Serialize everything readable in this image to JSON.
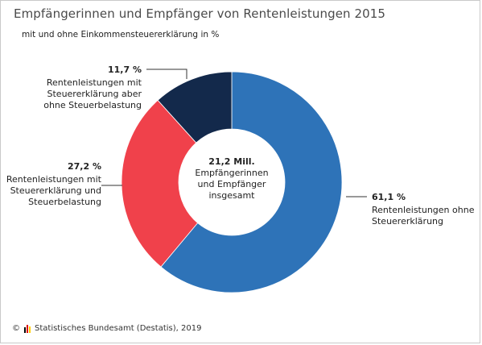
{
  "title": "Empfängerinnen und Empfänger von Rentenleistungen 2015",
  "subtitle": "mit und ohne Einkommensteuererklärung in %",
  "center_label": [
    "21,2 Mill.",
    "Empfängerinnen",
    "und Empfänger",
    "insgesamt"
  ],
  "footer": {
    "copyright": "©",
    "source": "Statistisches Bundesamt (Destatis), 2019",
    "logo_colors": [
      "#000000",
      "#dd0000",
      "#ffce00"
    ]
  },
  "chart_data": {
    "type": "pie",
    "donut": true,
    "start_angle_deg": 0,
    "direction": "clockwise",
    "total_label": "21,2 Mill.",
    "series": [
      {
        "value": 61.1,
        "value_label": "61,1 %",
        "label_lines": [
          "Rentenleistungen ohne",
          "Steuererklärung"
        ],
        "color": "#2e73b8"
      },
      {
        "value": 27.2,
        "value_label": "27,2 %",
        "label_lines": [
          "Rentenleistungen mit",
          "Steuererklärung und",
          "Steuerbelastung"
        ],
        "color": "#f0414b"
      },
      {
        "value": 11.7,
        "value_label": "11,7 %",
        "label_lines": [
          "Rentenleistungen mit",
          "Steuererklärung aber",
          "ohne Steuerbelastung"
        ],
        "color": "#13294b"
      }
    ]
  }
}
